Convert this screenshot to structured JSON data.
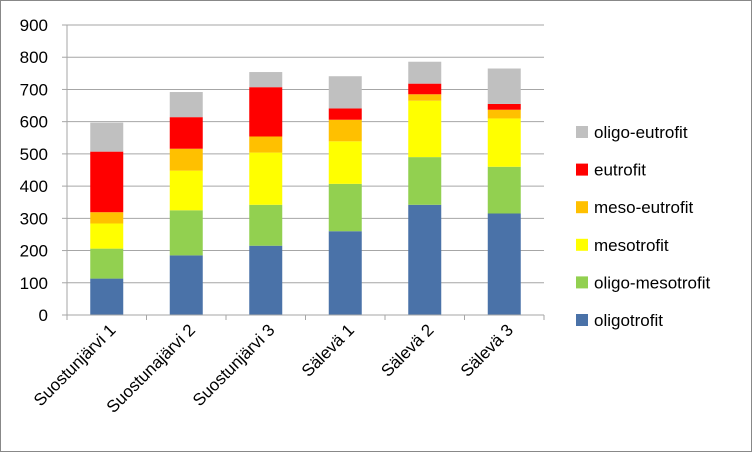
{
  "chart_data": {
    "type": "bar",
    "stacked": true,
    "categories": [
      "Suostunjärvi 1",
      "Suostunajärvi 2",
      "Suostunjärvi 3",
      "Sälevä 1",
      "Sälevä 2",
      "Sälevä 3"
    ],
    "series": [
      {
        "name": "oligotrofit",
        "color": "#4a72a8",
        "values": [
          113,
          185,
          215,
          260,
          342,
          315
        ]
      },
      {
        "name": "oligo-mesotrofit",
        "color": "#92d050",
        "values": [
          93,
          140,
          127,
          147,
          148,
          145
        ]
      },
      {
        "name": "mesotrofit",
        "color": "#ffff00",
        "values": [
          78,
          123,
          162,
          132,
          175,
          150
        ]
      },
      {
        "name": "meso-eutrofit",
        "color": "#ffc000",
        "values": [
          35,
          68,
          50,
          67,
          20,
          27
        ]
      },
      {
        "name": "eutrofit",
        "color": "#ff0000",
        "values": [
          188,
          98,
          153,
          35,
          33,
          18
        ]
      },
      {
        "name": "oligo-eutrofit",
        "color": "#c0c0c0",
        "values": [
          90,
          78,
          47,
          100,
          68,
          110
        ]
      }
    ],
    "ylim": [
      0,
      900
    ],
    "yticks": [
      "0",
      "100",
      "200",
      "300",
      "400",
      "500",
      "600",
      "700",
      "800",
      "900"
    ],
    "grid": true,
    "legend_position": "right",
    "title": "",
    "xlabel": "",
    "ylabel": ""
  }
}
